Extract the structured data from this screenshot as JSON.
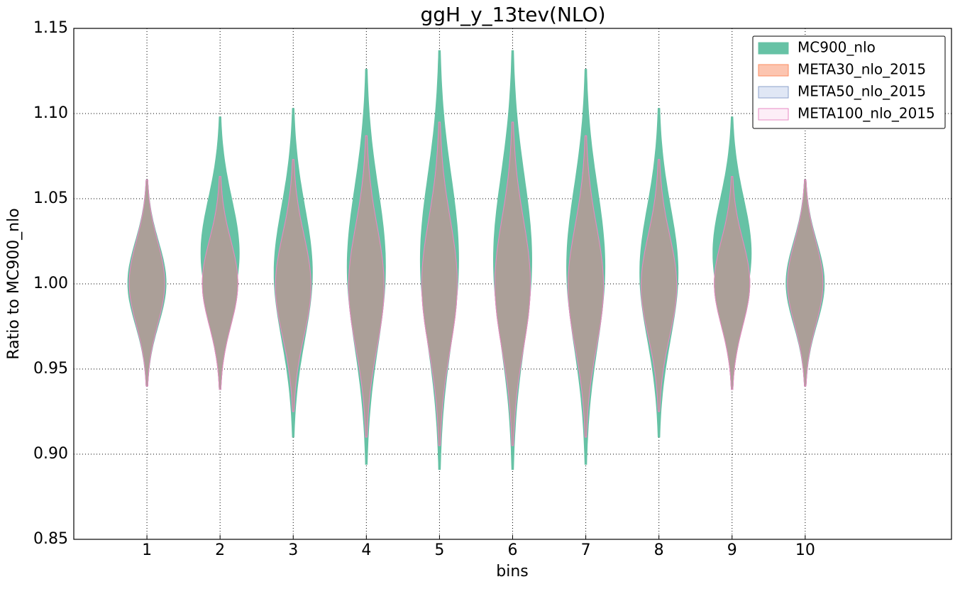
{
  "chart_data": {
    "type": "violin",
    "title": "ggH_y_13tev(NLO)",
    "x_label": "bins",
    "y_label": "Ratio to MC900_nlo",
    "categories": [
      "1",
      "2",
      "3",
      "4",
      "5",
      "6",
      "7",
      "8",
      "9",
      "10"
    ],
    "positions": [
      1,
      2,
      3,
      4,
      5,
      6,
      7,
      8,
      9,
      10
    ],
    "xlim": [
      0,
      12
    ],
    "ylim": [
      0.85,
      1.15
    ],
    "yticks": [
      0.85,
      {
        "value": 0.9,
        "label": "0.90"
      },
      0.95,
      {
        "value": 1.0,
        "label": "1.00"
      },
      1.05,
      {
        "value": 1.1,
        "label": "1.10"
      },
      1.15
    ],
    "grid": true,
    "legend": "upper right",
    "series": [
      {
        "name": "MC900_nlo",
        "color": "#66c2a5",
        "min": [
          0.94,
          0.938,
          0.91,
          0.894,
          0.891,
          0.891,
          0.894,
          0.91,
          0.938,
          0.94
        ],
        "max": [
          1.061,
          1.098,
          1.103,
          1.126,
          1.137,
          1.137,
          1.126,
          1.103,
          1.098,
          1.061
        ]
      },
      {
        "name": "META30_nlo_2015",
        "color": "#fc8d62",
        "min": [
          0.94,
          0.938,
          0.925,
          0.91,
          0.905,
          0.905,
          0.91,
          0.925,
          0.938,
          0.94
        ],
        "max": [
          1.061,
          1.063,
          1.073,
          1.087,
          1.095,
          1.095,
          1.087,
          1.073,
          1.063,
          1.061
        ]
      },
      {
        "name": "META50_nlo_2015",
        "color": "#8da0cb",
        "min": [
          0.94,
          0.938,
          0.925,
          0.91,
          0.905,
          0.905,
          0.91,
          0.925,
          0.938,
          0.94
        ],
        "max": [
          1.061,
          1.063,
          1.073,
          1.087,
          1.095,
          1.095,
          1.087,
          1.073,
          1.063,
          1.061
        ]
      },
      {
        "name": "META100_nlo_2015",
        "color": "#e78ac3",
        "min": [
          0.94,
          0.938,
          0.925,
          0.91,
          0.905,
          0.905,
          0.91,
          0.925,
          0.938,
          0.94
        ],
        "max": [
          1.061,
          1.063,
          1.073,
          1.087,
          1.095,
          1.095,
          1.087,
          1.073,
          1.063,
          1.061
        ]
      }
    ]
  }
}
